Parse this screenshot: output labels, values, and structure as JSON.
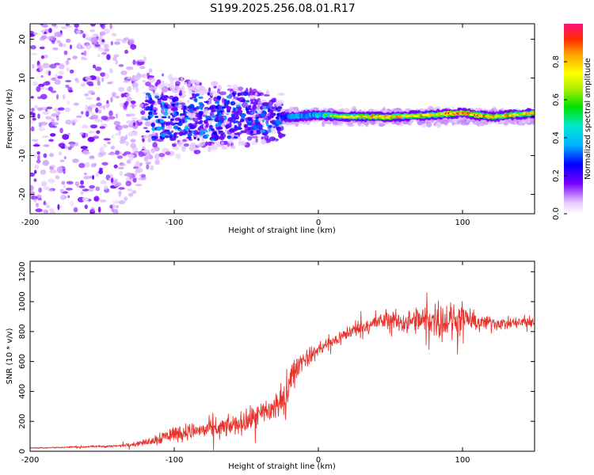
{
  "figure_title": "S199.2025.256.08.01.R17",
  "chart_data": [
    {
      "type": "heatmap",
      "title": "S199.2025.256.08.01.R17",
      "xlabel": "Height of straight line (km)",
      "ylabel": "Frequency (Hz)",
      "xlim": [
        -200,
        150
      ],
      "ylim": [
        -25,
        24
      ],
      "xticks": [
        -200,
        -100,
        0,
        100
      ],
      "yticks": [
        -20,
        -10,
        0,
        10,
        20
      ],
      "colorbar": {
        "label": "Normalized spectral amplitude",
        "range": [
          0,
          1
        ],
        "ticks": [
          0.0,
          0.2,
          0.4,
          0.6,
          0.8
        ],
        "tick_labels": [
          "0.0",
          "0.2",
          "0.4",
          "0.6",
          "0.8"
        ]
      },
      "ridge": [
        {
          "x": -120,
          "freq": 0,
          "amp": 0.15
        },
        {
          "x": -100,
          "freq": 0,
          "amp": 0.2
        },
        {
          "x": -80,
          "freq": 1,
          "amp": 0.2
        },
        {
          "x": -60,
          "freq": 0,
          "amp": 0.25
        },
        {
          "x": -40,
          "freq": -1,
          "amp": 0.25
        },
        {
          "x": -25,
          "freq": 0,
          "amp": 0.3
        },
        {
          "x": -20,
          "freq": 0,
          "amp": 0.45
        },
        {
          "x": 0,
          "freq": 0.5,
          "amp": 0.6
        },
        {
          "x": 20,
          "freq": 0,
          "amp": 0.75
        },
        {
          "x": 50,
          "freq": 0,
          "amp": 0.85
        },
        {
          "x": 80,
          "freq": 0.5,
          "amp": 0.8
        },
        {
          "x": 100,
          "freq": 1,
          "amp": 0.95
        },
        {
          "x": 120,
          "freq": 0,
          "amp": 0.85
        },
        {
          "x": 150,
          "freq": 1,
          "amp": 0.8
        }
      ]
    },
    {
      "type": "line",
      "xlabel": "Height of straight line (km)",
      "ylabel": "SNR (10 * v/v)",
      "xlim": [
        -200,
        150
      ],
      "ylim": [
        0,
        1270
      ],
      "xticks": [
        -200,
        -100,
        0,
        100
      ],
      "yticks": [
        0,
        200,
        400,
        600,
        800,
        1000,
        1200
      ],
      "color": "#e8332c",
      "series": [
        {
          "name": "SNR",
          "x": [
            -200,
            -180,
            -160,
            -140,
            -130,
            -120,
            -110,
            -100,
            -90,
            -80,
            -70,
            -60,
            -50,
            -40,
            -30,
            -22,
            -20,
            -15,
            -10,
            -5,
            0,
            10,
            20,
            30,
            40,
            50,
            60,
            70,
            80,
            90,
            100,
            110,
            120,
            130,
            140,
            150
          ],
          "values": [
            22,
            25,
            30,
            35,
            45,
            60,
            90,
            120,
            130,
            140,
            150,
            170,
            200,
            240,
            300,
            350,
            480,
            560,
            620,
            640,
            680,
            730,
            790,
            830,
            860,
            880,
            860,
            870,
            880,
            870,
            880,
            860,
            860,
            850,
            860,
            860
          ],
          "noise": [
            5,
            8,
            10,
            12,
            18,
            30,
            70,
            80,
            80,
            85,
            90,
            100,
            110,
            130,
            160,
            170,
            120,
            110,
            90,
            80,
            80,
            70,
            75,
            80,
            80,
            90,
            110,
            150,
            170,
            180,
            150,
            80,
            70,
            60,
            60,
            60
          ]
        }
      ]
    }
  ]
}
